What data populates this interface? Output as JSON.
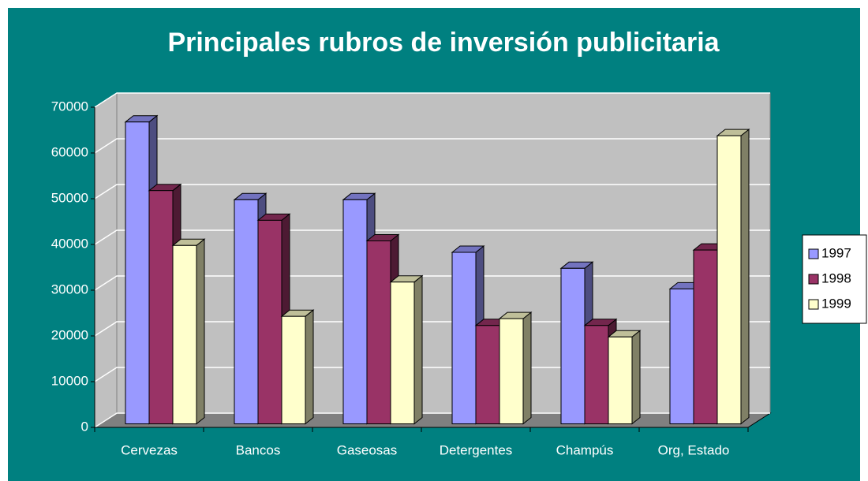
{
  "chart_data": {
    "type": "bar3d",
    "title": "Principales rubros de inversión publicitaria",
    "categories": [
      "Cervezas",
      "Bancos",
      "Gaseosas",
      "Detergentes",
      "Champús",
      "Org, Estado"
    ],
    "series": [
      {
        "name": "1997",
        "color": "#9999ff",
        "values": [
          66000,
          49000,
          49000,
          37500,
          34000,
          29500
        ]
      },
      {
        "name": "1998",
        "color": "#993366",
        "values": [
          51000,
          44500,
          40000,
          21500,
          21500,
          38000
        ]
      },
      {
        "name": "1999",
        "color": "#ffffcc",
        "values": [
          39000,
          23500,
          31000,
          23000,
          19000,
          63000
        ]
      }
    ],
    "ylim": [
      0,
      70000
    ],
    "yticks": [
      0,
      10000,
      20000,
      30000,
      40000,
      50000,
      60000,
      70000
    ],
    "grid": true,
    "legend": "right"
  }
}
